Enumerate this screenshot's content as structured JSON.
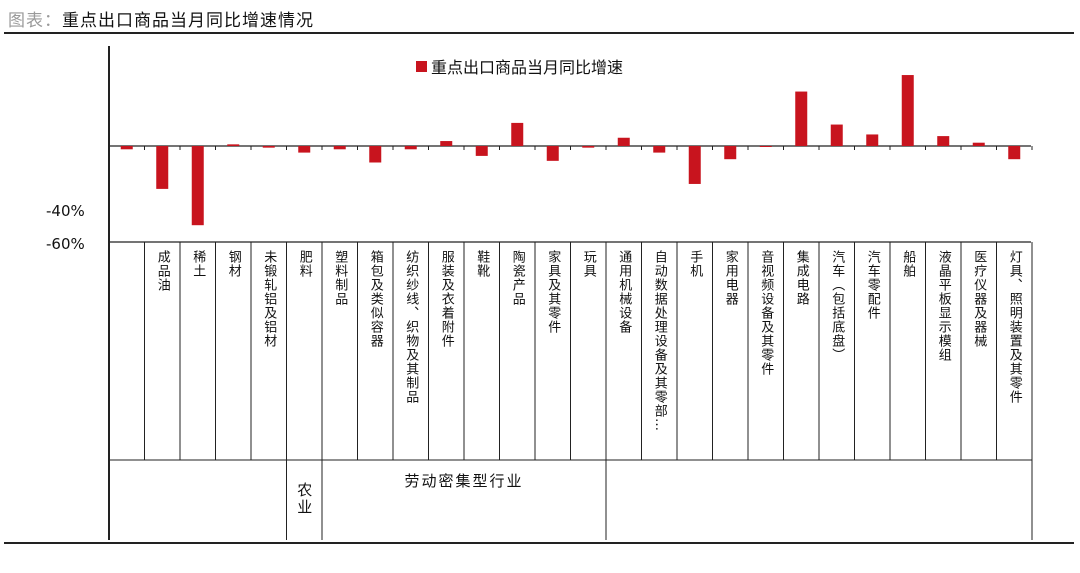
{
  "page": {
    "title_prefix": "图表：",
    "title": "重点出口商品当月同比增速情况"
  },
  "chart_data": {
    "type": "bar",
    "legend": "重点出口商品当月同比增速",
    "legend_position": "top-center",
    "bar_color": "#c8141e",
    "ylim": [
      -60,
      40
    ],
    "yticks": [
      "-40%",
      "-60%"
    ],
    "categories": [
      "",
      "成品油",
      "稀土",
      "钢材",
      "未锻轧铝及铝材",
      "肥料",
      "塑料制品",
      "箱包及类似容器",
      "纺织纱线、织物及其制品",
      "服装及衣着附件",
      "鞋靴",
      "陶瓷产品",
      "家具及其零件",
      "玩具",
      "通用机械设备",
      "自动数据处理设备及其零部…",
      "手机",
      "家用电器",
      "音视频设备及其零件",
      "集成电路",
      "汽车（包括底盘）",
      "汽车零配件",
      "船舶",
      "液晶平板显示模组",
      "医疗仪器及器械",
      "灯具、照明装置及其零件"
    ],
    "values": [
      -2,
      -26,
      -48,
      1,
      -1,
      -4,
      -2,
      -10,
      -2,
      3,
      -6,
      14,
      -9,
      -1,
      5,
      -4,
      -23,
      -8,
      0,
      33,
      13,
      7,
      43,
      6,
      2,
      -8
    ],
    "groups": [
      {
        "label": "",
        "start": 0,
        "end": 5
      },
      {
        "label": "农业",
        "start": 5,
        "end": 6
      },
      {
        "label": "劳动密集型行业",
        "start": 6,
        "end": 14
      },
      {
        "label": "",
        "start": 14,
        "end": 26
      }
    ]
  }
}
